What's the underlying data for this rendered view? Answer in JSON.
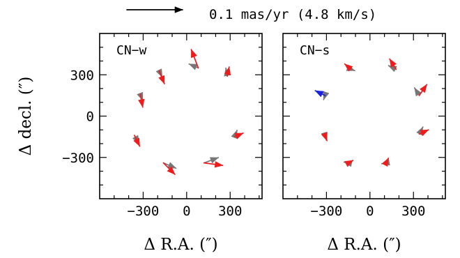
{
  "scale_bar": {
    "label": "0.1 mas/yr (4.8 km/s)",
    "value_mas_per_yr": 0.1
  },
  "chart_data": [
    {
      "type": "quiver",
      "panel_label": "CN−w",
      "xlabel": "Δ  R.A.  (″)",
      "ylabel": "Δ  decl.  (″)",
      "xlim": [
        -600,
        520
      ],
      "ylim": [
        -600,
        600
      ],
      "xticks": [
        -300,
        0,
        300
      ],
      "yticks": [
        -300,
        0,
        300
      ],
      "grid": false,
      "colors": {
        "red": "#ee1c1c",
        "gray": "#777777",
        "blue": "#1a22dd"
      },
      "vectors": [
        {
          "x": 80,
          "y": 350,
          "u": -0.0125,
          "v": 0.033,
          "color": "red"
        },
        {
          "x": 80,
          "y": 350,
          "u": -0.0165,
          "v": 0.007,
          "color": "gray"
        },
        {
          "x": -190,
          "y": 330,
          "u": 0.0055,
          "v": -0.0115,
          "color": "gray"
        },
        {
          "x": -190,
          "y": 330,
          "u": 0.0095,
          "v": -0.0235,
          "color": "red"
        },
        {
          "x": 280,
          "y": 290,
          "u": 0.0035,
          "v": 0.0165,
          "color": "red"
        },
        {
          "x": 280,
          "y": 290,
          "u": -0.0025,
          "v": 0.0145,
          "color": "gray"
        },
        {
          "x": -320,
          "y": 160,
          "u": 0.0045,
          "v": -0.0115,
          "color": "gray"
        },
        {
          "x": -320,
          "y": 160,
          "u": 0.0045,
          "v": -0.0235,
          "color": "red"
        },
        {
          "x": 330,
          "y": -150,
          "u": 0.0155,
          "v": 0.0065,
          "color": "red"
        },
        {
          "x": 330,
          "y": -150,
          "u": 0.0045,
          "v": 0.0115,
          "color": "gray"
        },
        {
          "x": -360,
          "y": -140,
          "u": 0.0095,
          "v": -0.0195,
          "color": "red"
        },
        {
          "x": -360,
          "y": -140,
          "u": 0.0085,
          "v": -0.0145,
          "color": "gray"
        },
        {
          "x": -160,
          "y": -340,
          "u": 0.0225,
          "v": -0.0095,
          "color": "gray"
        },
        {
          "x": -160,
          "y": -340,
          "u": 0.0205,
          "v": -0.0205,
          "color": "red"
        },
        {
          "x": 120,
          "y": -340,
          "u": 0.0335,
          "v": -0.0045,
          "color": "red"
        },
        {
          "x": 120,
          "y": -340,
          "u": 0.0255,
          "v": 0.0095,
          "color": "gray"
        }
      ]
    },
    {
      "type": "quiver",
      "panel_label": "CN−s",
      "xlabel": "Δ  R.A.  (″)",
      "ylabel": "",
      "xlim": [
        -600,
        520
      ],
      "ylim": [
        -600,
        600
      ],
      "xticks": [
        -300,
        0,
        300
      ],
      "yticks": [
        -300,
        0,
        300
      ],
      "grid": false,
      "colors": {
        "red": "#ee1c1c",
        "gray": "#777777",
        "blue": "#1a22dd"
      },
      "vectors": [
        {
          "x": -130,
          "y": 340,
          "u": -0.0115,
          "v": 0.0095,
          "color": "red"
        },
        {
          "x": -130,
          "y": 340,
          "u": 0.0065,
          "v": -0.0025,
          "color": "gray"
        },
        {
          "x": 180,
          "y": 340,
          "u": -0.0115,
          "v": 0.0185,
          "color": "red"
        },
        {
          "x": 180,
          "y": 340,
          "u": -0.0135,
          "v": 0.0065,
          "color": "gray"
        },
        {
          "x": -310,
          "y": 150,
          "u": -0.0175,
          "v": 0.0085,
          "color": "blue"
        },
        {
          "x": -310,
          "y": 150,
          "u": -0.0025,
          "v": -0.0075,
          "color": "gray"
        },
        {
          "x": 340,
          "y": 150,
          "u": 0.0135,
          "v": 0.0195,
          "color": "red"
        },
        {
          "x": 340,
          "y": 150,
          "u": -0.0085,
          "v": 0.0135,
          "color": "gray"
        },
        {
          "x": 340,
          "y": -130,
          "u": 0.0165,
          "v": 0.0075,
          "color": "red"
        },
        {
          "x": 340,
          "y": -130,
          "u": 0.0065,
          "v": 0.0125,
          "color": "gray"
        },
        {
          "x": -310,
          "y": -140,
          "u": 0.0035,
          "v": -0.0095,
          "color": "red"
        },
        {
          "x": -310,
          "y": -140,
          "u": 0.0025,
          "v": -0.0085,
          "color": "gray"
        },
        {
          "x": -150,
          "y": -340,
          "u": 0.0085,
          "v": 0.0045,
          "color": "red"
        },
        {
          "x": -150,
          "y": -340,
          "u": -0.0075,
          "v": 0.0015,
          "color": "gray"
        },
        {
          "x": 110,
          "y": -340,
          "u": 0.0045,
          "v": 0.0085,
          "color": "red"
        },
        {
          "x": 110,
          "y": -340,
          "u": -0.0075,
          "v": -0.0015,
          "color": "gray"
        }
      ]
    }
  ]
}
